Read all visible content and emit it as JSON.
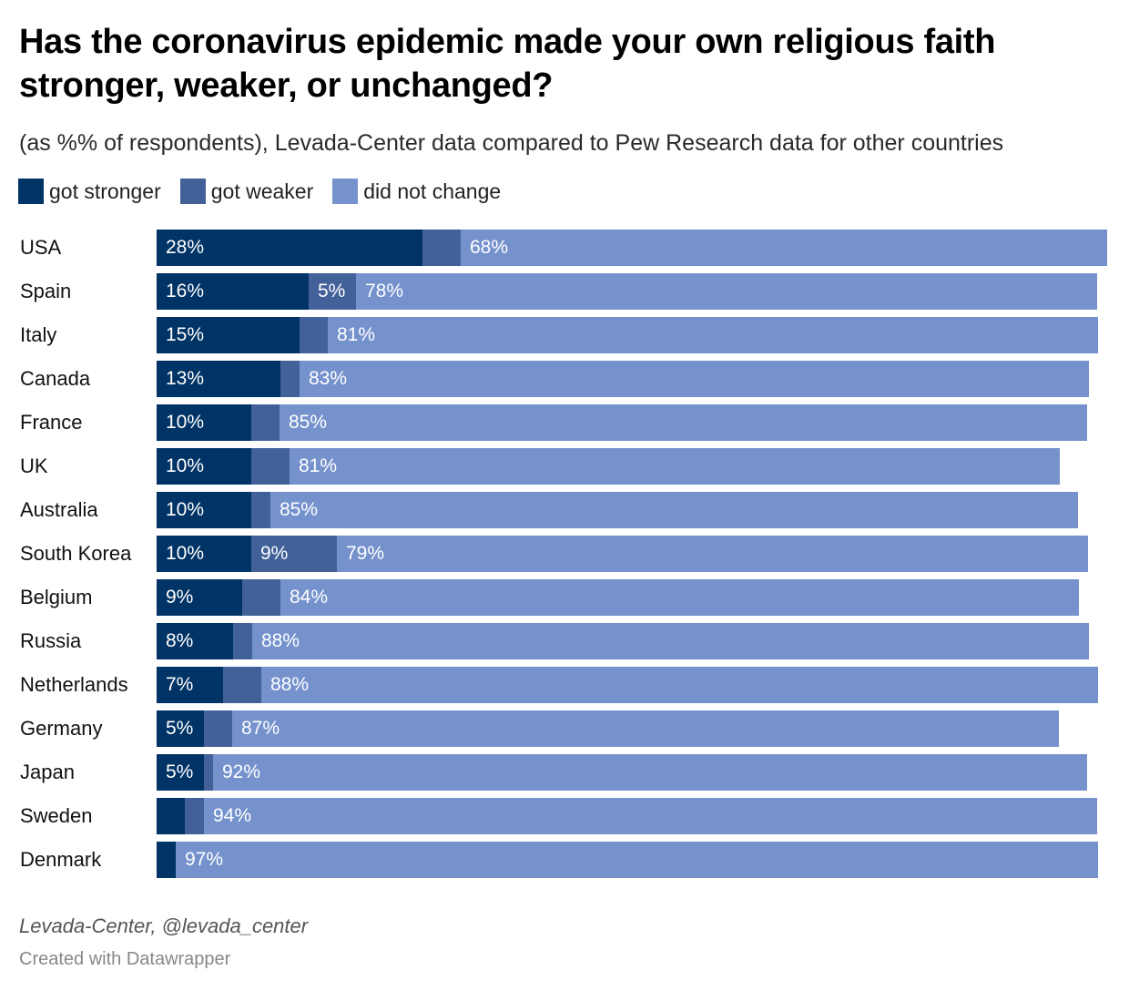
{
  "chart_data": {
    "type": "bar",
    "orientation": "horizontal",
    "stacked": true,
    "title": "Has the coronavirus epidemic made your own religious faith stronger, weaker, or unchanged?",
    "subtitle": "(as %% of respondents), Levada-Center data compared to Pew Research data for other countries",
    "xlabel": "",
    "ylabel": "",
    "xlim": [
      0,
      100
    ],
    "grid": false,
    "legend_position": "top-left",
    "categories": [
      "USA",
      "Spain",
      "Italy",
      "Canada",
      "France",
      "UK",
      "Australia",
      "South Korea",
      "Belgium",
      "Russia",
      "Netherlands",
      "Germany",
      "Japan",
      "Sweden",
      "Denmark"
    ],
    "series": [
      {
        "name": "got stronger",
        "color": "#003366",
        "values": [
          28,
          16,
          15,
          13,
          10,
          10,
          10,
          10,
          9,
          8,
          7,
          5,
          5,
          3,
          2
        ],
        "labels": [
          "28%",
          "16%",
          "15%",
          "13%",
          "10%",
          "10%",
          "10%",
          "10%",
          "9%",
          "8%",
          "7%",
          "5%",
          "5%",
          "",
          ""
        ]
      },
      {
        "name": "got weaker",
        "color": "#426199",
        "values": [
          4,
          5,
          3,
          2,
          3,
          4,
          2,
          9,
          4,
          2,
          4,
          3,
          1,
          2,
          0
        ],
        "labels": [
          "",
          "5%",
          "",
          "",
          "",
          "",
          "",
          "9%",
          "",
          "",
          "",
          "",
          "",
          "",
          ""
        ]
      },
      {
        "name": "did not change",
        "color": "#7592cd",
        "values": [
          68,
          78,
          81,
          83,
          85,
          81,
          85,
          79,
          84,
          88,
          88,
          87,
          92,
          94,
          97
        ],
        "labels": [
          "68%",
          "78%",
          "81%",
          "83%",
          "85%",
          "81%",
          "85%",
          "79%",
          "84%",
          "88%",
          "88%",
          "87%",
          "92%",
          "94%",
          "97%"
        ]
      }
    ]
  },
  "footer": {
    "source": "Levada-Center, @levada_center",
    "credit": "Created with Datawrapper"
  }
}
